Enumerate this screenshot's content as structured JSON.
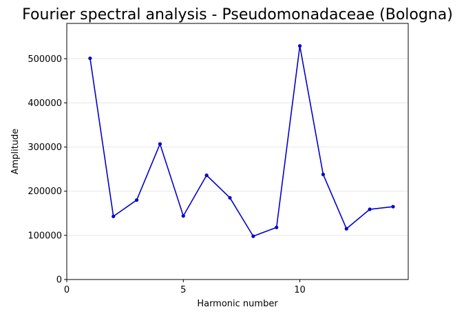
{
  "chart_data": {
    "type": "line",
    "title": "Fourier spectral analysis - Pseudomonadaceae (Bologna)",
    "xlabel": "Harmonic number",
    "ylabel": "Amplitude",
    "xlim": [
      0,
      14.65
    ],
    "ylim": [
      0,
      580000
    ],
    "xticks": [
      0,
      5,
      10
    ],
    "xtick_labels": [
      "0",
      "5",
      "10"
    ],
    "yticks": [
      0,
      100000,
      200000,
      300000,
      400000,
      500000
    ],
    "ytick_labels": [
      "0",
      "100000",
      "200000",
      "300000",
      "400000",
      "500000"
    ],
    "grid": "horizontal",
    "color": "#0000cc",
    "series": [
      {
        "x": [
          1,
          2,
          3,
          4,
          5,
          6,
          7,
          8,
          9,
          10,
          11,
          12,
          13,
          14
        ],
        "values": [
          501000,
          143000,
          180000,
          307000,
          144000,
          236000,
          185000,
          98000,
          118000,
          529000,
          238000,
          115000,
          159000,
          165000
        ]
      }
    ]
  }
}
